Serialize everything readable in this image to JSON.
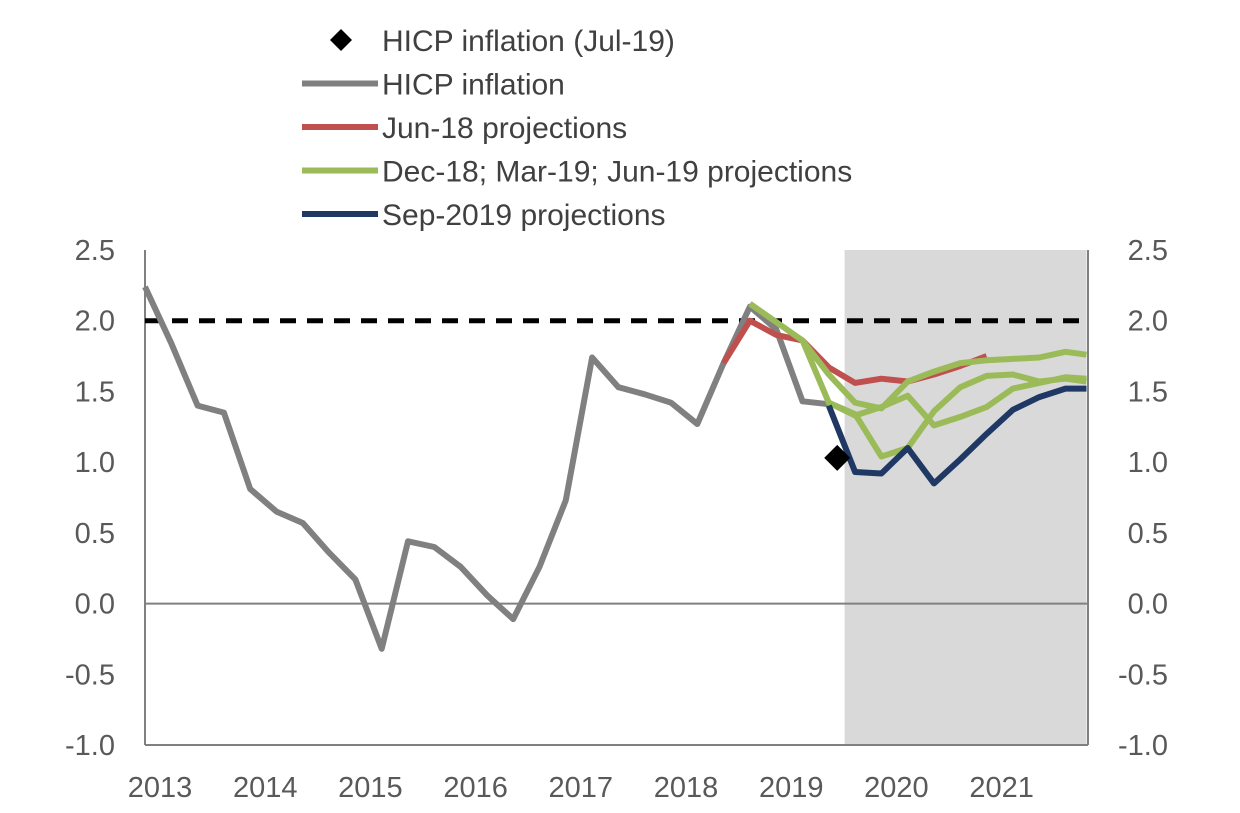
{
  "chart_data": {
    "type": "line",
    "title": "",
    "xlabel": "",
    "ylabel": "",
    "ylim": [
      -1.0,
      2.5
    ],
    "y_ticks": [
      "2.5",
      "2.0",
      "1.5",
      "1.0",
      "0.5",
      "0.0",
      "-0.5",
      "-1.0"
    ],
    "y_tick_values": [
      2.5,
      2.0,
      1.5,
      1.0,
      0.5,
      0.0,
      -0.5,
      -1.0
    ],
    "xlim": [
      2013.0,
      2021.9
    ],
    "x_ticks": [
      "2013",
      "2014",
      "2015",
      "2016",
      "2017",
      "2018",
      "2019",
      "2020",
      "2021"
    ],
    "x_tick_values": [
      2013,
      2014,
      2015,
      2016,
      2017,
      2018,
      2019,
      2020,
      2021
    ],
    "grid": false,
    "legend_position": "top",
    "shaded_region": {
      "from": 2019.65,
      "to": 2021.95,
      "color": "#d9d9d9"
    },
    "reference_line": {
      "y": 2.0,
      "style": "dashed",
      "color": "#000000"
    },
    "zero_line": {
      "y": 0.0,
      "color": "#808080"
    },
    "series": [
      {
        "name": "HICP inflation",
        "color": "#808080",
        "x": [
          2013.0,
          2013.25,
          2013.5,
          2013.75,
          2014.0,
          2014.25,
          2014.5,
          2014.75,
          2015.0,
          2015.25,
          2015.5,
          2015.75,
          2016.0,
          2016.25,
          2016.5,
          2016.75,
          2017.0,
          2017.25,
          2017.5,
          2017.75,
          2018.0,
          2018.25,
          2018.5,
          2018.75,
          2019.0,
          2019.25,
          2019.5
        ],
        "y": [
          2.24,
          1.84,
          1.4,
          1.35,
          0.81,
          0.65,
          0.57,
          0.36,
          0.17,
          -0.32,
          0.44,
          0.4,
          0.26,
          0.06,
          -0.11,
          0.26,
          0.73,
          1.74,
          1.53,
          1.48,
          1.42,
          1.27,
          1.7,
          2.1,
          1.94,
          1.43,
          1.41
        ]
      },
      {
        "name": "Jun-18 projections",
        "color": "#c0504d",
        "x": [
          2018.5,
          2018.75,
          2019.0,
          2019.25,
          2019.5,
          2019.75,
          2020.0,
          2020.25,
          2020.5,
          2020.75,
          2021.0
        ],
        "y": [
          1.7,
          2.0,
          1.9,
          1.86,
          1.67,
          1.56,
          1.59,
          1.57,
          1.62,
          1.68,
          1.75
        ]
      },
      {
        "name": "Dec-18; Mar-19; Jun-19 projections",
        "color": "#9bbb59",
        "x": [
          2018.75,
          2019.0,
          2019.25,
          2019.5,
          2019.75,
          2020.0,
          2020.25,
          2020.5,
          2020.75,
          2021.0,
          2021.25,
          2021.5,
          2021.75,
          2021.95
        ],
        "y": [
          2.12,
          1.99,
          1.86,
          1.62,
          1.42,
          1.38,
          1.57,
          1.64,
          1.7,
          1.72,
          1.73,
          1.74,
          1.78,
          1.76
        ]
      },
      {
        "name": "",
        "color": "#9bbb59",
        "x": [
          2019.25,
          2019.5,
          2019.75,
          2020.0,
          2020.25,
          2020.5,
          2020.75,
          2021.0,
          2021.25,
          2021.5,
          2021.75,
          2021.95
        ],
        "y": [
          1.86,
          1.42,
          1.33,
          1.39,
          1.47,
          1.26,
          1.32,
          1.39,
          1.52,
          1.56,
          1.6,
          1.59
        ]
      },
      {
        "name": "",
        "color": "#9bbb59",
        "x": [
          2019.5,
          2019.75,
          2020.0,
          2020.25,
          2020.5,
          2020.75,
          2021.0,
          2021.25,
          2021.5,
          2021.75,
          2021.95
        ],
        "y": [
          1.42,
          1.34,
          1.04,
          1.1,
          1.36,
          1.53,
          1.61,
          1.62,
          1.57,
          1.59,
          1.57
        ]
      },
      {
        "name": "Sep-2019 projections",
        "color": "#1f3864",
        "x": [
          2019.5,
          2019.75,
          2020.0,
          2020.25,
          2020.5,
          2020.75,
          2021.0,
          2021.25,
          2021.5,
          2021.75,
          2021.95
        ],
        "y": [
          1.4,
          0.93,
          0.92,
          1.1,
          0.85,
          1.02,
          1.2,
          1.37,
          1.46,
          1.52,
          1.52
        ]
      }
    ],
    "markers": [
      {
        "name": "HICP inflation (Jul-19)",
        "x": 2019.58,
        "y": 1.03,
        "shape": "diamond",
        "color": "#000000"
      }
    ],
    "legend": [
      {
        "label": "HICP inflation (Jul-19)",
        "kind": "marker",
        "color": "#000000"
      },
      {
        "label": "HICP inflation",
        "kind": "line",
        "color": "#808080"
      },
      {
        "label": "Jun-18 projections",
        "kind": "line",
        "color": "#c0504d"
      },
      {
        "label": "Dec-18; Mar-19; Jun-19 projections",
        "kind": "line",
        "color": "#9bbb59"
      },
      {
        "label": "Sep-2019 projections",
        "kind": "line",
        "color": "#1f3864"
      }
    ]
  }
}
